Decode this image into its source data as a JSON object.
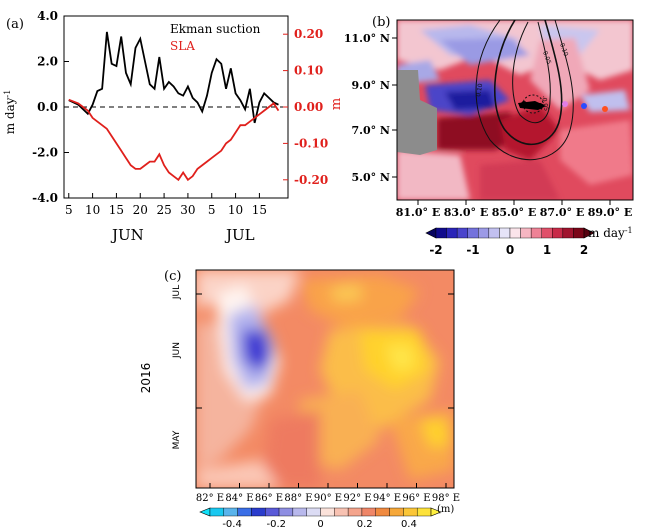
{
  "chart_data": [
    {
      "panel": "(a)",
      "type": "line",
      "x_ticks": [
        "5",
        "10",
        "15",
        "20",
        "25",
        "30",
        "5",
        "10",
        "15"
      ],
      "x_months": [
        "JUN",
        "JUL"
      ],
      "y_left": {
        "label": "m day",
        "label_exp": "-1",
        "ticks": [
          "4.0",
          "2.0",
          "0.0",
          "-2.0",
          "-4.0"
        ],
        "range": [
          -4,
          4
        ]
      },
      "y_right": {
        "label": "m",
        "ticks": [
          "0.20",
          "0.10",
          "0.00",
          "-0.10",
          "-0.20"
        ],
        "range": [
          -0.25,
          0.25
        ]
      },
      "series": [
        {
          "name": "Ekman suction",
          "axis": "left",
          "color": "#000000",
          "x": [
            5,
            7,
            9,
            10,
            11,
            12,
            13,
            14,
            15,
            16,
            17,
            18,
            19,
            20,
            21,
            22,
            23,
            24,
            25,
            26,
            27,
            28,
            29,
            30,
            31,
            32,
            33,
            34,
            35,
            36,
            37,
            38,
            39,
            40,
            41,
            42,
            43,
            44,
            45,
            46,
            47,
            48,
            49
          ],
          "y": [
            0.3,
            0.1,
            -0.3,
            0.1,
            0.7,
            0.8,
            3.3,
            1.9,
            1.8,
            3.1,
            1.5,
            1.0,
            2.6,
            3.0,
            2.0,
            1.0,
            0.8,
            2.2,
            0.8,
            1.1,
            0.9,
            0.6,
            0.5,
            0.9,
            0.4,
            0.2,
            -0.2,
            0.5,
            1.5,
            2.1,
            1.9,
            0.8,
            1.7,
            0.6,
            0.3,
            -0.1,
            0.8,
            -0.7,
            0.2,
            0.6,
            0.4,
            0.2,
            0.1
          ]
        },
        {
          "name": "SLA",
          "axis": "right",
          "color": "#e0201c",
          "x": [
            5,
            7,
            9,
            10,
            11,
            12,
            13,
            14,
            15,
            16,
            17,
            18,
            19,
            20,
            21,
            22,
            23,
            24,
            25,
            26,
            27,
            28,
            29,
            30,
            31,
            32,
            33,
            34,
            35,
            36,
            37,
            38,
            39,
            40,
            41,
            42,
            43,
            44,
            45,
            46,
            47,
            48,
            49
          ],
          "y": [
            0.02,
            0.01,
            -0.01,
            -0.03,
            -0.04,
            -0.05,
            -0.06,
            -0.08,
            -0.1,
            -0.12,
            -0.14,
            -0.16,
            -0.17,
            -0.17,
            -0.16,
            -0.15,
            -0.15,
            -0.13,
            -0.16,
            -0.18,
            -0.19,
            -0.2,
            -0.18,
            -0.2,
            -0.19,
            -0.17,
            -0.16,
            -0.15,
            -0.14,
            -0.13,
            -0.12,
            -0.1,
            -0.09,
            -0.07,
            -0.05,
            -0.05,
            -0.04,
            -0.03,
            -0.02,
            -0.01,
            0.0,
            0.01,
            -0.01
          ]
        }
      ]
    },
    {
      "panel": "(b)",
      "type": "heatmap",
      "x_ticks": [
        "81.0° E",
        "83.0° E",
        "85.0° E",
        "87.0° E",
        "89.0° E"
      ],
      "y_ticks": [
        "11.0° N",
        "9.0° N",
        "7.0° N",
        "5.0° N"
      ],
      "colorbar": {
        "ticks": [
          "-2",
          "-1",
          "0",
          "1",
          "2"
        ],
        "unit": "m day",
        "unit_exp": "-1",
        "range": [
          -2,
          2
        ]
      },
      "contour_labels": [
        "0.10",
        "0.05",
        "0.10",
        "-0.05"
      ]
    },
    {
      "panel": "(c)",
      "type": "heatmap",
      "ylabel": "2016",
      "y_ticks": [
        "JUL",
        "JUN",
        "MAY"
      ],
      "x_ticks": [
        "82° E",
        "84° E",
        "86° E",
        "88° E",
        "90° E",
        "92° E",
        "94° E",
        "96° E",
        "98° E"
      ],
      "colorbar": {
        "ticks": [
          "-0.4",
          "-0.2",
          "0",
          "0.2",
          "0.4"
        ],
        "unit": "(m)",
        "range": [
          -0.5,
          0.5
        ]
      }
    }
  ]
}
